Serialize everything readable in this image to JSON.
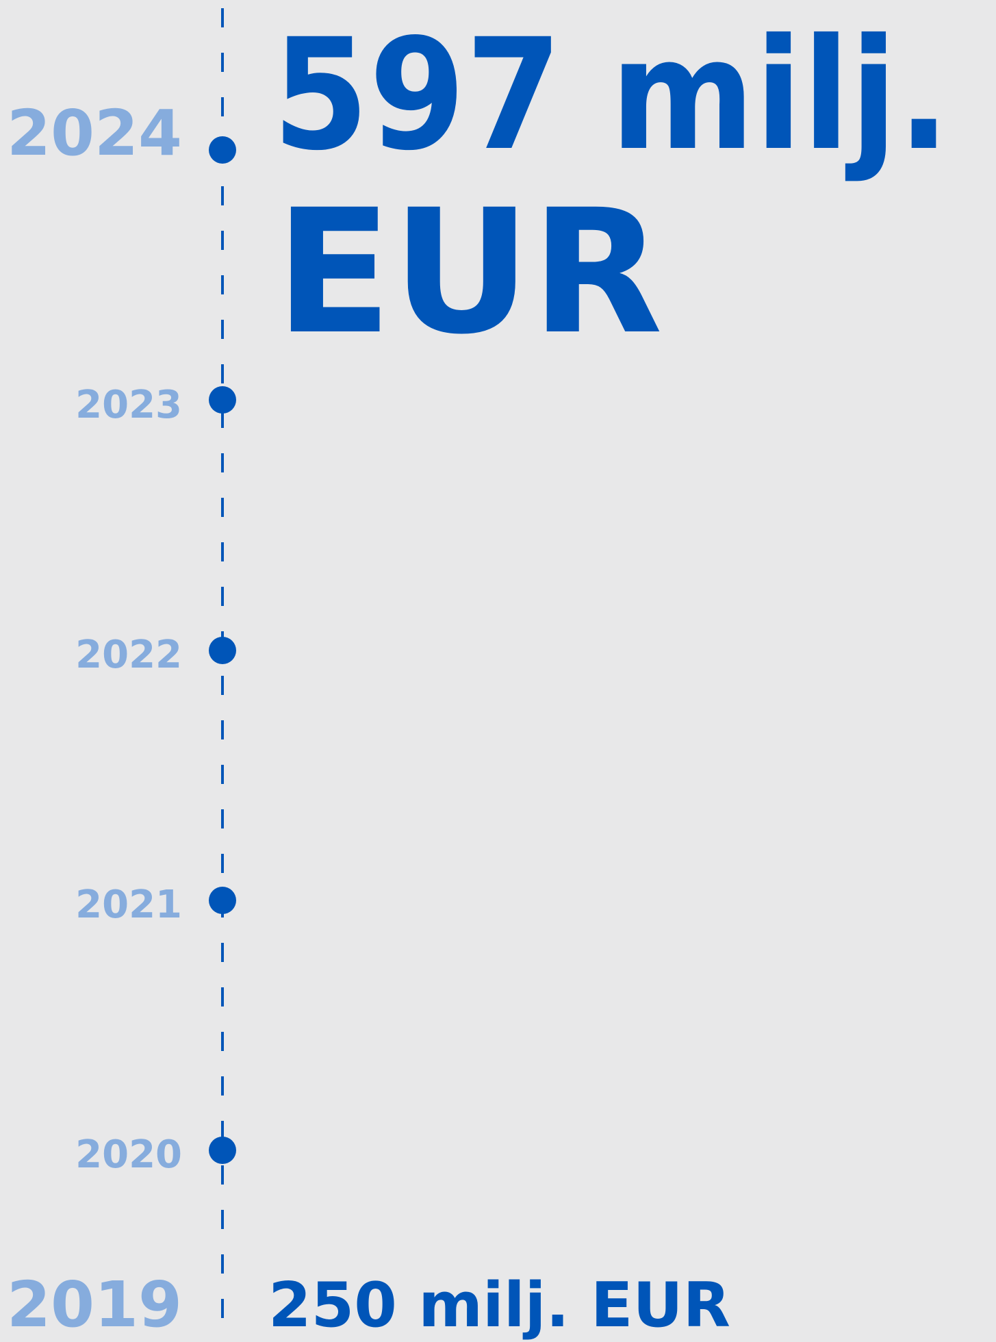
{
  "timeline": {
    "years": [
      "2024",
      "2023",
      "2022",
      "2021",
      "2020",
      "2019"
    ],
    "top_value": {
      "line1": "597 milj.",
      "line2": "EUR"
    },
    "bottom_value": "250 milj. EUR"
  }
}
